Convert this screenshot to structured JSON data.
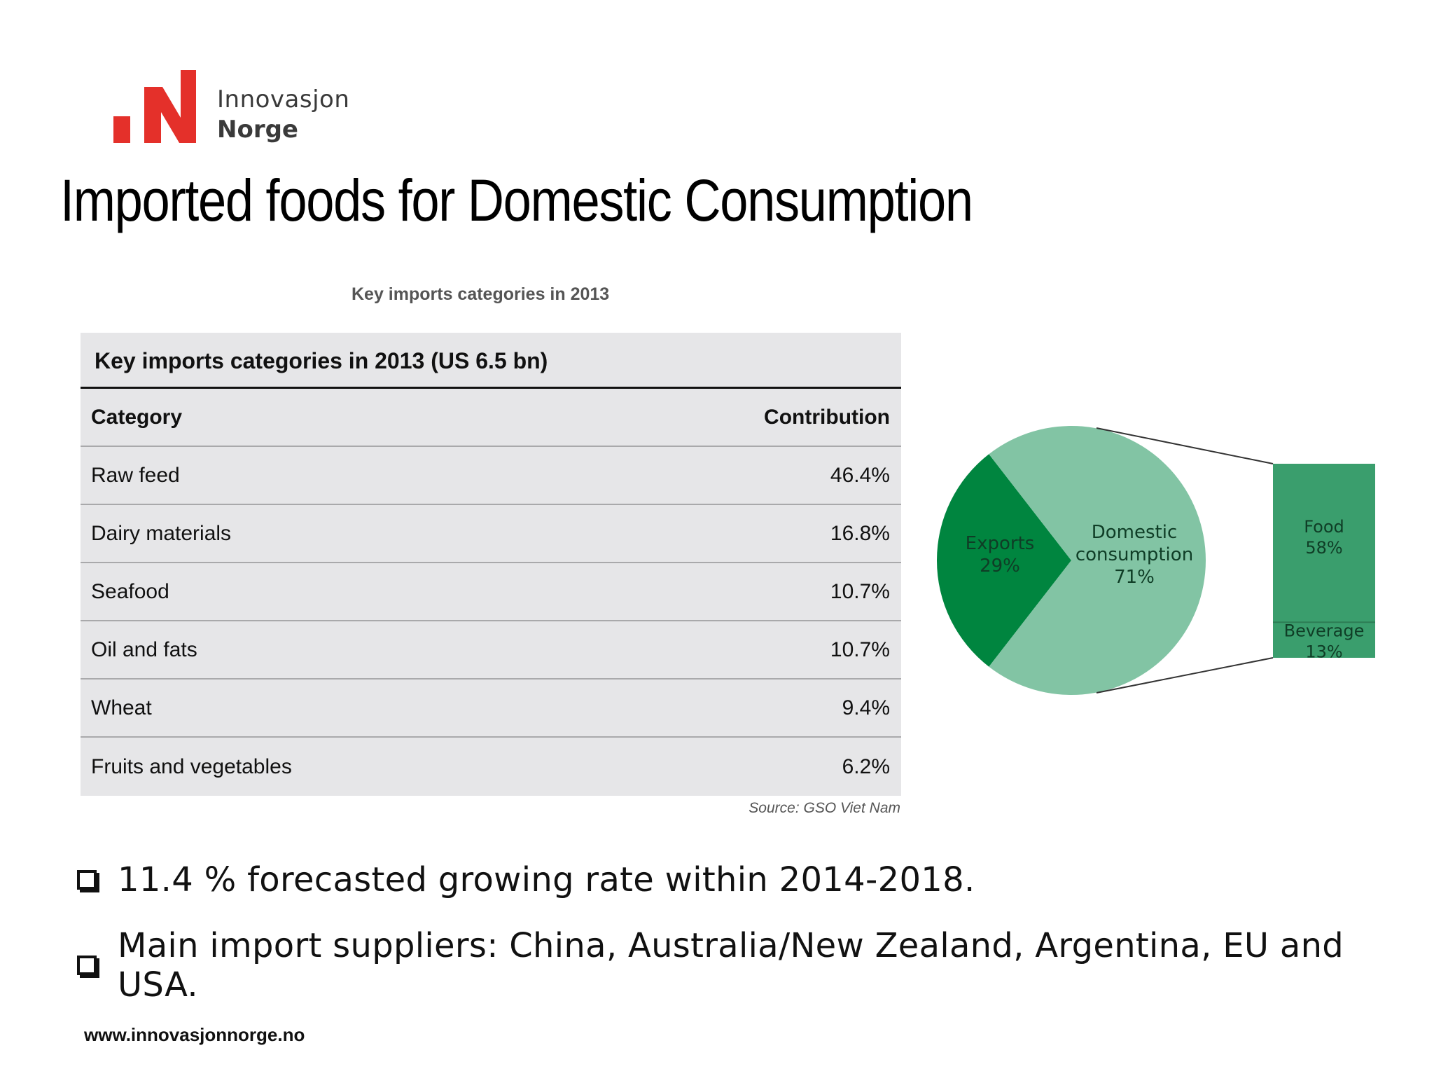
{
  "logo": {
    "line1": "Innovasjon",
    "line2": "Norge",
    "brand_color": "#e4302a"
  },
  "title": "Imported foods for Domestic Consumption",
  "chart_caption": "Key imports categories in 2013",
  "table": {
    "heading": "Key imports categories in 2013 (US 6.5 bn)",
    "columns": [
      "Category",
      "Contribution"
    ],
    "rows": [
      [
        "Raw feed",
        "46.4%"
      ],
      [
        "Dairy materials",
        "16.8%"
      ],
      [
        "Seafood",
        "10.7%"
      ],
      [
        "Oil and fats",
        "10.7%"
      ],
      [
        "Wheat",
        "9.4%"
      ],
      [
        "Fruits and vegetables",
        "6.2%"
      ]
    ]
  },
  "source": "Source: GSO Viet Nam",
  "chart_data": {
    "type": "pie",
    "slices": [
      {
        "label": "Exports",
        "value": 29,
        "display": "29%",
        "color": "#00853f"
      },
      {
        "label": "Domestic consumption",
        "value": 71,
        "display": "71%",
        "color": "#82c4a4"
      }
    ],
    "breakdown": {
      "of": "Domestic consumption",
      "type": "stacked-bar",
      "segments": [
        {
          "label": "Food",
          "value": 58,
          "display": "58%",
          "color": "#3a9e6d"
        },
        {
          "label": "Beverage",
          "value": 13,
          "display": "13%",
          "color": "#3a9e6d"
        }
      ]
    }
  },
  "bullets": [
    "11.4 % forecasted growing rate within 2014-2018.",
    "Main import suppliers: China, Australia/New Zealand,  Argentina, EU and USA."
  ],
  "footer_url": "www.innovasjonnorge.no"
}
